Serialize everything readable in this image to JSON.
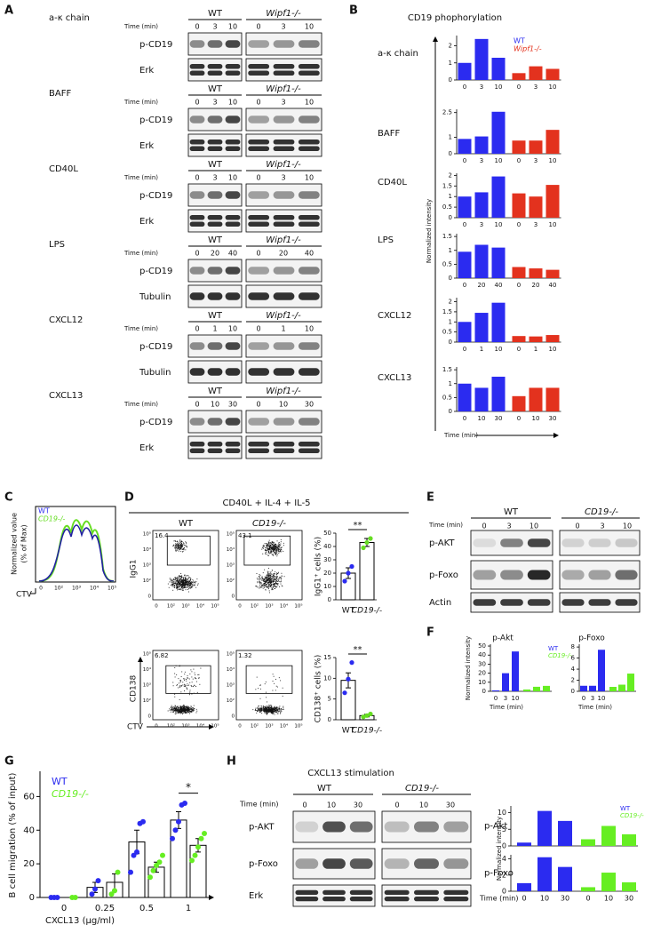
{
  "A": {
    "label": "A",
    "time_label": "Time (min)",
    "groups": [
      "WT",
      "Wipf1-/-"
    ],
    "blocks": [
      {
        "stimulus": "a-κ chain",
        "times": [
          "0",
          "3",
          "10"
        ],
        "rows": [
          "p-CD19",
          "Erk"
        ]
      },
      {
        "stimulus": "BAFF",
        "times": [
          "0",
          "3",
          "10"
        ],
        "rows": [
          "p-CD19",
          "Erk"
        ]
      },
      {
        "stimulus": "CD40L",
        "times": [
          "0",
          "3",
          "10"
        ],
        "rows": [
          "p-CD19",
          "Erk"
        ]
      },
      {
        "stimulus": "LPS",
        "times": [
          "0",
          "20",
          "40"
        ],
        "rows": [
          "p-CD19",
          "Tubulin"
        ]
      },
      {
        "stimulus": "CXCL12",
        "times": [
          "0",
          "1",
          "10"
        ],
        "rows": [
          "p-CD19",
          "Tubulin"
        ]
      },
      {
        "stimulus": "CXCL13",
        "times": [
          "0",
          "10",
          "30"
        ],
        "rows": [
          "p-CD19",
          "Erk"
        ]
      }
    ]
  },
  "B": {
    "label": "B",
    "title": "CD19 phophorylation",
    "y_label": "Normalized intensity",
    "x_label": "Time (min)",
    "series": [
      {
        "name": "WT",
        "color": "#2b2bf0"
      },
      {
        "name": "Wipf1-/-",
        "color": "#e3321e"
      }
    ],
    "charts": [
      {
        "name": "a-κ chain",
        "categories": [
          "0",
          "3",
          "10"
        ],
        "values": [
          [
            1.0,
            2.4,
            1.3
          ],
          [
            0.4,
            0.8,
            0.65
          ]
        ],
        "ylim": [
          0,
          2.6
        ],
        "yticks": [
          0,
          1,
          2
        ]
      },
      {
        "name": "BAFF",
        "categories": [
          "0",
          "3",
          "10"
        ],
        "values": [
          [
            0.9,
            1.05,
            2.55
          ],
          [
            0.8,
            0.8,
            1.45
          ]
        ],
        "ylim": [
          0,
          2.7
        ],
        "yticks": [
          0,
          1,
          2.5
        ]
      },
      {
        "name": "CD40L",
        "categories": [
          "0",
          "3",
          "10"
        ],
        "values": [
          [
            1.0,
            1.2,
            1.95
          ],
          [
            1.15,
            1.0,
            1.55
          ]
        ],
        "ylim": [
          0,
          2.1
        ],
        "yticks": [
          0,
          0.5,
          1,
          1.5,
          2
        ]
      },
      {
        "name": "LPS",
        "categories": [
          "0",
          "20",
          "40"
        ],
        "values": [
          [
            0.95,
            1.2,
            1.1
          ],
          [
            0.4,
            0.35,
            0.3
          ]
        ],
        "ylim": [
          0,
          1.6
        ],
        "yticks": [
          0,
          0.5,
          1,
          1.5
        ]
      },
      {
        "name": "CXCL12",
        "categories": [
          "0",
          "1",
          "10"
        ],
        "values": [
          [
            1.0,
            1.45,
            1.95
          ],
          [
            0.3,
            0.28,
            0.35
          ]
        ],
        "ylim": [
          0,
          2.2
        ],
        "yticks": [
          0,
          0.5,
          1,
          1.5,
          2
        ]
      },
      {
        "name": "CXCL13",
        "categories": [
          "0",
          "10",
          "30"
        ],
        "values": [
          [
            1.0,
            0.85,
            1.25
          ],
          [
            0.55,
            0.85,
            0.85
          ]
        ],
        "ylim": [
          0,
          1.6
        ],
        "yticks": [
          0,
          0.5,
          1,
          1.5
        ]
      }
    ]
  },
  "C": {
    "label": "C",
    "legend": [
      {
        "name": "WT",
        "color": "#2b2bf0"
      },
      {
        "name": "CD19-/-",
        "color": "#66dd22"
      }
    ],
    "y_label": [
      "Normalized value",
      "(% of Max)"
    ],
    "x_label": "CTV",
    "x_tick_labels": [
      "0",
      "10²",
      "10³",
      "10⁴",
      "10⁵"
    ]
  },
  "D": {
    "label": "D",
    "condition": "CD40L + IL-4 + IL-5",
    "groups": [
      "WT",
      "CD19-/-"
    ],
    "colors": [
      "#2b2bf0",
      "#66dd22"
    ],
    "flow": {
      "y_labels": [
        "IgG1",
        "CD138"
      ],
      "x_label": "CTV",
      "tick_labels": [
        "0",
        "10²",
        "10³",
        "10⁴",
        "10⁵"
      ],
      "gates": [
        [
          16.4,
          43.1
        ],
        [
          6.82,
          1.32
        ]
      ]
    },
    "summary": [
      {
        "y_label": "IgG1⁺ cells (%)",
        "categories": [
          "WT",
          "CD19-/-"
        ],
        "values": [
          20,
          43
        ],
        "errors": [
          4,
          3
        ],
        "points": [
          [
            14,
            20,
            25
          ],
          [
            39,
            43,
            46
          ]
        ],
        "ylim": [
          0,
          50
        ],
        "yticks": [
          0,
          10,
          20,
          30,
          40,
          50
        ],
        "significance": "**"
      },
      {
        "y_label": "CD138⁺ cells (%)",
        "categories": [
          "WT",
          "CD19-/-"
        ],
        "values": [
          9.5,
          1
        ],
        "errors": [
          1.8,
          0.3
        ],
        "points": [
          [
            6.5,
            9.8,
            13.8
          ],
          [
            0.7,
            1,
            1.4
          ]
        ],
        "ylim": [
          0,
          15
        ],
        "yticks": [
          0,
          5,
          10,
          15
        ],
        "significance": "**"
      }
    ]
  },
  "E": {
    "label": "E",
    "time_label": "Time (min)",
    "groups": [
      "WT",
      "CD19-/-"
    ],
    "times": [
      "0",
      "3",
      "10"
    ],
    "rows": [
      "p-AKT",
      "p-Foxo",
      "Actin"
    ]
  },
  "F": {
    "label": "F",
    "y_label": "Normalized intensity",
    "x_label": "Time (min)",
    "series": [
      {
        "name": "WT",
        "color": "#2b2bf0"
      },
      {
        "name": "CD19-/-",
        "color": "#66ee22"
      }
    ],
    "charts": [
      {
        "name": "p-Akt",
        "categories": [
          "0",
          "3",
          "10"
        ],
        "values": [
          [
            1,
            20,
            44
          ],
          [
            2,
            5,
            6
          ]
        ],
        "ylim": [
          0,
          52
        ],
        "yticks": [
          0,
          10,
          20,
          30,
          40,
          50
        ]
      },
      {
        "name": "p-Foxo",
        "categories": [
          "0",
          "3",
          "10"
        ],
        "values": [
          [
            1,
            1,
            7.5
          ],
          [
            0.8,
            1.2,
            3.2
          ]
        ],
        "ylim": [
          0,
          8.5
        ],
        "yticks": [
          0,
          2,
          4,
          6,
          8
        ]
      }
    ]
  },
  "G": {
    "label": "G",
    "y_label": "B cell migration (% of input)",
    "x_label": "CXCL13 (μg/ml)",
    "categories": [
      "0",
      "0.25",
      "0.5",
      "1"
    ],
    "ylim": [
      0,
      75
    ],
    "yticks": [
      0,
      20,
      40,
      60
    ],
    "significance": "*",
    "series": [
      {
        "name": "WT",
        "color": "#2b2bf0",
        "values": [
          0,
          6,
          33,
          46
        ],
        "errors": [
          0,
          3,
          7,
          5
        ],
        "points": [
          [
            0,
            0,
            0
          ],
          [
            2,
            5,
            10
          ],
          [
            15,
            25,
            27,
            44,
            45
          ],
          [
            35,
            40,
            45,
            55,
            56
          ]
        ]
      },
      {
        "name": "CD19-/-",
        "color": "#66ee22",
        "values": [
          0,
          9,
          18,
          31
        ],
        "errors": [
          0,
          5,
          3,
          4
        ],
        "points": [
          [
            0,
            0
          ],
          [
            2,
            4,
            15
          ],
          [
            12,
            16,
            19,
            21,
            25
          ],
          [
            22,
            25,
            30,
            35,
            38
          ]
        ]
      }
    ]
  },
  "H": {
    "label": "H",
    "title": "CXCL13 stimulation",
    "time_label": "Time (min)",
    "groups": [
      "WT",
      "CD19-/-"
    ],
    "times": [
      "0",
      "10",
      "30"
    ],
    "rows": [
      "p-AKT",
      "p-Foxo",
      "Erk"
    ],
    "y_label": "Normalized intensity",
    "x_label": "Time (min)",
    "series": [
      {
        "name": "WT",
        "color": "#2b2bf0"
      },
      {
        "name": "CD19-/-",
        "color": "#66ee22"
      }
    ],
    "charts": [
      {
        "name": "p-Akt",
        "categories": [
          "0",
          "10",
          "30"
        ],
        "values": [
          [
            1,
            10.5,
            7.5
          ],
          [
            2,
            6,
            3.5
          ]
        ],
        "ylim": [
          0,
          12
        ],
        "yticks": [
          0,
          5,
          10
        ]
      },
      {
        "name": "p-Foxo",
        "categories": [
          "0",
          "10",
          "30"
        ],
        "values": [
          [
            1,
            4.2,
            3
          ],
          [
            0.5,
            2.3,
            1.1
          ]
        ],
        "ylim": [
          0,
          4.5
        ],
        "yticks": [
          0,
          2,
          4
        ]
      }
    ]
  }
}
